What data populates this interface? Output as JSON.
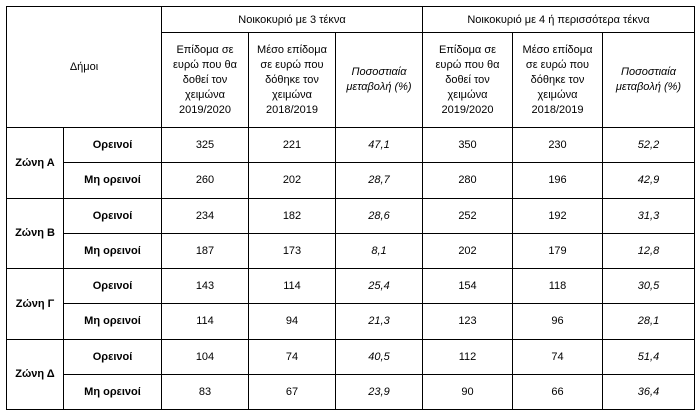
{
  "header": {
    "municipalities": "Δήμοι",
    "group1": "Νοικοκυριό με 3 τέκνα",
    "group2": "Νοικοκυριό με 4 ή περισσότερα τέκνα",
    "col_new": "Επίδομα σε ευρώ που θα δοθεί τον χειμώνα 2019/2020",
    "col_old": "Μέσο επίδομα σε ευρώ που δόθηκε τον χειμώνα 2018/2019",
    "col_pct": "Ποσοστιαία μεταβολή (%)"
  },
  "zones": [
    {
      "name": "Ζώνη Α",
      "rows": [
        {
          "type": "Ορεινοί",
          "v": [
            "325",
            "221",
            "47,1",
            "350",
            "230",
            "52,2"
          ]
        },
        {
          "type": "Μη ορεινοί",
          "v": [
            "260",
            "202",
            "28,7",
            "280",
            "196",
            "42,9"
          ]
        }
      ]
    },
    {
      "name": "Ζώνη Β",
      "rows": [
        {
          "type": "Ορεινοί",
          "v": [
            "234",
            "182",
            "28,6",
            "252",
            "192",
            "31,3"
          ]
        },
        {
          "type": "Μη ορεινοί",
          "v": [
            "187",
            "173",
            "8,1",
            "202",
            "179",
            "12,8"
          ]
        }
      ]
    },
    {
      "name": "Ζώνη Γ",
      "rows": [
        {
          "type": "Ορεινοί",
          "v": [
            "143",
            "114",
            "25,4",
            "154",
            "118",
            "30,5"
          ]
        },
        {
          "type": "Μη ορεινοί",
          "v": [
            "114",
            "94",
            "21,3",
            "123",
            "96",
            "28,1"
          ]
        }
      ]
    },
    {
      "name": "Ζώνη Δ",
      "rows": [
        {
          "type": "Ορεινοί",
          "v": [
            "104",
            "74",
            "40,5",
            "112",
            "74",
            "51,4"
          ]
        },
        {
          "type": "Μη ορεινοί",
          "v": [
            "83",
            "67",
            "23,9",
            "90",
            "66",
            "36,4"
          ]
        }
      ]
    }
  ]
}
